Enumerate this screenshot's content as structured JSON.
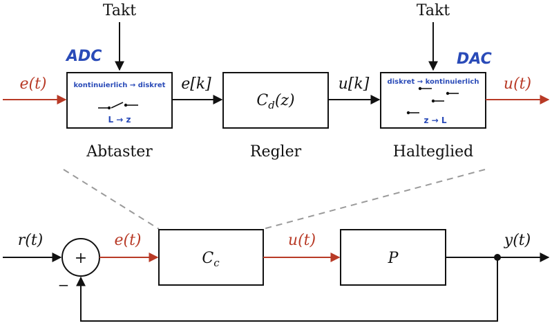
{
  "colors": {
    "black": "#111111",
    "red": "#b83a26",
    "blue": "#2a4bb8",
    "dashed": "#9a9a9a"
  },
  "top": {
    "takt_left": "Takt",
    "takt_right": "Takt",
    "adc_label": "ADC",
    "dac_label": "DAC",
    "signal_in": "e(t)",
    "signal_ek": "e[k]",
    "signal_uk": "u[k]",
    "signal_out": "u(t)",
    "abtaster": {
      "note": "kontinuierlich → diskret",
      "sub": "L → z",
      "caption": "Abtaster"
    },
    "regler": {
      "label": "C_d(z)",
      "caption": "Regler"
    },
    "halteglied": {
      "note": "diskret → kontinuierlich",
      "sub": "z → L",
      "caption": "Halteglied"
    }
  },
  "bottom": {
    "r": "r(t)",
    "e": "e(t)",
    "u": "u(t)",
    "y": "y(t)",
    "sum_plus": "+",
    "sum_minus": "−",
    "controller": "Cc",
    "plant": "P"
  }
}
